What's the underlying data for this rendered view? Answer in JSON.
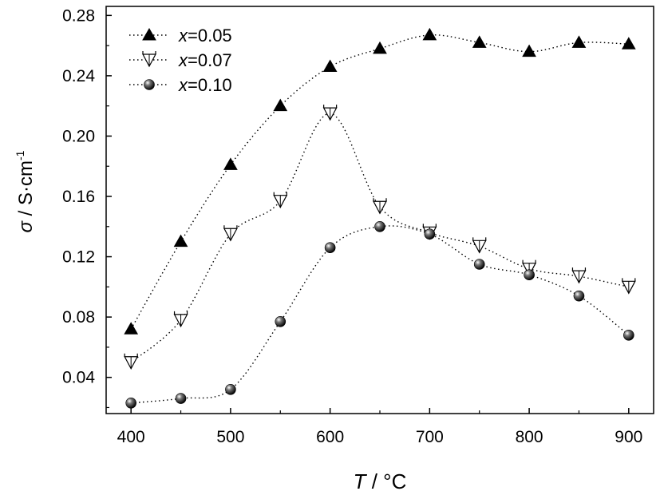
{
  "chart_data": {
    "type": "line",
    "xlabel_italic": "T",
    "xlabel_unit": " / °C",
    "ylabel_italic": "σ",
    "ylabel_unit": " / S·cm",
    "ylabel_exp": "-1",
    "xlim": [
      375,
      925
    ],
    "ylim": [
      0.016,
      0.286
    ],
    "xticks": [
      400,
      500,
      600,
      700,
      800,
      900
    ],
    "xtick_labels": [
      "400",
      "500",
      "600",
      "700",
      "800",
      "900"
    ],
    "yticks": [
      0.04,
      0.08,
      0.12,
      0.16,
      0.2,
      0.24,
      0.28
    ],
    "ytick_labels": [
      "0.04",
      "0.08",
      "0.12",
      "0.16",
      "0.20",
      "0.24",
      "0.28"
    ],
    "x": [
      400,
      450,
      500,
      550,
      600,
      650,
      700,
      750,
      800,
      850,
      900
    ],
    "series": [
      {
        "name_italic": "x",
        "name_rest": "=0.05",
        "marker": "triangle-filled",
        "values": [
          0.072,
          0.13,
          0.181,
          0.22,
          0.246,
          0.258,
          0.267,
          0.262,
          0.256,
          0.262,
          0.261
        ]
      },
      {
        "name_italic": "x",
        "name_rest": "=0.07",
        "marker": "triangle-down-open",
        "values": [
          0.05,
          0.078,
          0.135,
          0.157,
          0.215,
          0.153,
          0.136,
          0.127,
          0.112,
          0.107,
          0.1
        ]
      },
      {
        "name_italic": "x",
        "name_rest": "=0.10",
        "marker": "sphere",
        "values": [
          0.023,
          0.026,
          0.032,
          0.077,
          0.126,
          0.14,
          0.135,
          0.115,
          0.108,
          0.094,
          0.068
        ]
      }
    ],
    "legend_position": "top-left"
  }
}
